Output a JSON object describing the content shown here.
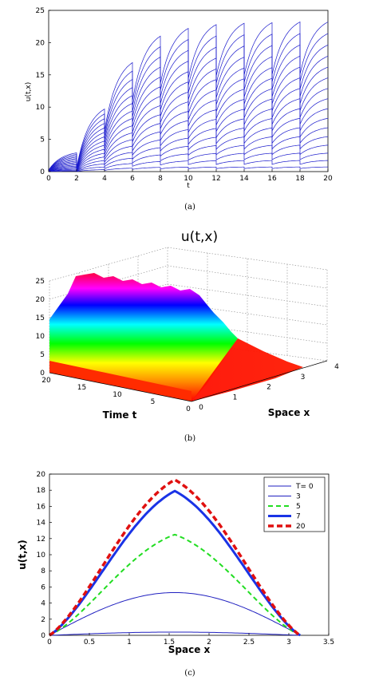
{
  "chart_data": [
    {
      "type": "line",
      "caption": "(a)",
      "title": "",
      "xlabel": "t",
      "ylabel": "u(t,x)",
      "xlim": [
        0,
        20
      ],
      "ylim": [
        0,
        25
      ],
      "xticks": [
        "0",
        "2",
        "4",
        "6",
        "8",
        "10",
        "12",
        "14",
        "16",
        "18",
        "20"
      ],
      "yticks": [
        "0",
        "5",
        "10",
        "15",
        "20",
        "25"
      ],
      "pulse_times": [
        2,
        4,
        6,
        8,
        10,
        12,
        14,
        16,
        18,
        20
      ],
      "peak_envelope": {
        "t": [
          2,
          4,
          6,
          8,
          10,
          12,
          14,
          16,
          18,
          20
        ],
        "u": [
          2.9,
          9.7,
          16.9,
          21.0,
          22.2,
          22.8,
          23.0,
          23.1,
          23.2,
          23.2
        ]
      },
      "curve_count": 16,
      "line_color": "#1a1acc",
      "grid": false
    },
    {
      "type": "surface",
      "caption": "(b)",
      "title": "u(t,x)",
      "xlabel": "Time t",
      "ylabel": "Space x",
      "zticks": [
        "0",
        "5",
        "10",
        "15",
        "20",
        "25"
      ],
      "tticks": [
        "20",
        "15",
        "10",
        "5",
        "0"
      ],
      "sticks": [
        "0",
        "1",
        "2",
        "3",
        "4"
      ],
      "zlim": [
        0,
        25
      ],
      "time_range": [
        0,
        20
      ],
      "space_range": [
        0,
        3.14
      ],
      "colormap": "hsv",
      "grid": true
    },
    {
      "type": "line",
      "caption": "(c)",
      "title": "",
      "xlabel": "Space x",
      "ylabel": "u(t,x)",
      "xlim": [
        0,
        3.5
      ],
      "ylim": [
        0,
        20
      ],
      "xticks": [
        "0",
        "0.5",
        "1",
        "1.5",
        "2",
        "2.5",
        "3",
        "3.5"
      ],
      "yticks": [
        "0",
        "2",
        "4",
        "6",
        "8",
        "10",
        "12",
        "14",
        "16",
        "18",
        "20"
      ],
      "legend_position": "top-right",
      "series": [
        {
          "name": "T= 0",
          "peak": 0.4,
          "color": "#2020c0",
          "width": 1,
          "dash": ""
        },
        {
          "name": "3",
          "peak": 5.3,
          "color": "#2020c0",
          "width": 1,
          "dash": ""
        },
        {
          "name": "5",
          "peak": 12.5,
          "color": "#22dd22",
          "width": 2,
          "dash": "6,4"
        },
        {
          "name": "7",
          "peak": 17.9,
          "color": "#1a33e6",
          "width": 3,
          "dash": ""
        },
        {
          "name": "20",
          "peak": 19.3,
          "color": "#e01010",
          "width": 3.5,
          "dash": "7,4"
        }
      ]
    }
  ]
}
